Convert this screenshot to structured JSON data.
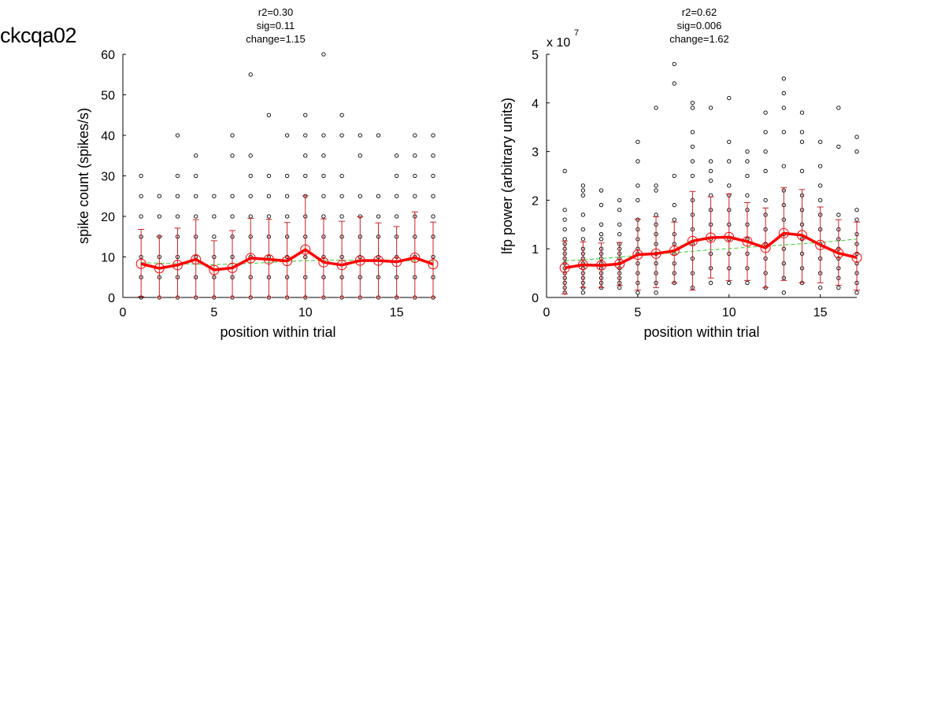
{
  "figure": {
    "title": "ckcqa02"
  },
  "chart_data": [
    {
      "type": "scatter",
      "stats": [
        "r2=0.30",
        "sig=0.11",
        "change=1.15"
      ],
      "xlabel": "position within trial",
      "ylabel": "spike count (spikes/s)",
      "xlim": [
        0,
        17
      ],
      "ylim": [
        0,
        60
      ],
      "xticks": [
        "0",
        "5",
        "10",
        "15"
      ],
      "yticks": [
        "0",
        "10",
        "20",
        "30",
        "40",
        "50",
        "60"
      ],
      "exponent_base": "",
      "exponent_power": "",
      "grid": false,
      "raw_points": [
        {
          "x": 1,
          "y": [
            0,
            5,
            10,
            15,
            20,
            25,
            30
          ]
        },
        {
          "x": 2,
          "y": [
            0,
            5,
            10,
            15,
            20,
            25
          ]
        },
        {
          "x": 3,
          "y": [
            0,
            5,
            10,
            15,
            20,
            25,
            30,
            40
          ]
        },
        {
          "x": 4,
          "y": [
            0,
            5,
            10,
            15,
            20,
            25,
            30,
            35
          ]
        },
        {
          "x": 5,
          "y": [
            0,
            5,
            10,
            15,
            20,
            25
          ]
        },
        {
          "x": 6,
          "y": [
            0,
            5,
            10,
            15,
            20,
            25,
            35,
            40
          ]
        },
        {
          "x": 7,
          "y": [
            0,
            5,
            10,
            15,
            20,
            25,
            30,
            35,
            55
          ]
        },
        {
          "x": 8,
          "y": [
            0,
            5,
            10,
            15,
            20,
            25,
            30,
            45
          ]
        },
        {
          "x": 9,
          "y": [
            0,
            5,
            10,
            15,
            20,
            25,
            30,
            40
          ]
        },
        {
          "x": 10,
          "y": [
            0,
            5,
            10,
            15,
            20,
            25,
            30,
            35,
            40,
            45
          ]
        },
        {
          "x": 11,
          "y": [
            0,
            5,
            10,
            15,
            20,
            25,
            30,
            35,
            40,
            60
          ]
        },
        {
          "x": 12,
          "y": [
            0,
            5,
            10,
            15,
            20,
            25,
            30,
            40,
            45
          ]
        },
        {
          "x": 13,
          "y": [
            0,
            5,
            10,
            15,
            20,
            25,
            35,
            40
          ]
        },
        {
          "x": 14,
          "y": [
            0,
            5,
            10,
            15,
            20,
            25,
            40
          ]
        },
        {
          "x": 15,
          "y": [
            0,
            5,
            10,
            15,
            20,
            25,
            30,
            35
          ]
        },
        {
          "x": 16,
          "y": [
            0,
            5,
            10,
            15,
            20,
            25,
            30,
            35,
            40
          ]
        },
        {
          "x": 17,
          "y": [
            0,
            5,
            10,
            15,
            20,
            25,
            30,
            35,
            40
          ]
        }
      ],
      "mean": {
        "x": [
          1,
          2,
          3,
          4,
          5,
          6,
          7,
          8,
          9,
          10,
          11,
          12,
          13,
          14,
          15,
          16,
          17
        ],
        "y": [
          8.3,
          7.2,
          8.0,
          9.4,
          6.8,
          7.3,
          9.7,
          9.4,
          9.0,
          11.8,
          8.7,
          8.0,
          9.1,
          9.1,
          8.8,
          9.8,
          8.2
        ]
      },
      "error_bars": {
        "low": [
          0.2,
          0,
          0,
          0,
          0,
          0,
          0,
          0,
          0,
          0,
          0,
          0,
          0,
          0,
          0,
          0,
          0
        ],
        "high": [
          16.8,
          15.1,
          17.1,
          19.2,
          14.0,
          16.5,
          19.5,
          19.3,
          18.5,
          25.1,
          19.4,
          18.8,
          19.9,
          18.4,
          17.5,
          21.1,
          18.6
        ]
      },
      "trend": {
        "x": [
          1,
          3,
          5,
          7,
          9,
          11,
          13,
          15,
          17
        ],
        "y": [
          8.6,
          8.3,
          8.1,
          8.4,
          8.9,
          9.2,
          9.2,
          9.1,
          9.0
        ]
      }
    },
    {
      "type": "scatter",
      "stats": [
        "r2=0.62",
        "sig=0.006",
        "change=1.62"
      ],
      "xlabel": "position within trial",
      "ylabel": "lfp power (arbitrary units)",
      "xlim": [
        0,
        17
      ],
      "ylim": [
        0,
        5
      ],
      "xticks": [
        "0",
        "5",
        "10",
        "15"
      ],
      "yticks": [
        "0",
        "1",
        "2",
        "3",
        "4",
        "5"
      ],
      "exponent_base": "x 10",
      "exponent_power": "7",
      "grid": false,
      "raw_points": [
        {
          "x": 1,
          "y": [
            0.1,
            0.2,
            0.3,
            0.4,
            0.5,
            0.6,
            0.7,
            0.8,
            0.9,
            1.0,
            1.1,
            1.2,
            1.4,
            1.6,
            1.8,
            2.6
          ]
        },
        {
          "x": 2,
          "y": [
            0.1,
            0.2,
            0.3,
            0.4,
            0.5,
            0.6,
            0.7,
            0.8,
            0.9,
            1.0,
            1.2,
            1.4,
            1.7,
            2.1,
            2.2,
            2.3
          ]
        },
        {
          "x": 3,
          "y": [
            0.2,
            0.3,
            0.4,
            0.5,
            0.6,
            0.7,
            0.8,
            0.9,
            1.0,
            1.2,
            1.3,
            1.5,
            1.9,
            2.2
          ]
        },
        {
          "x": 4,
          "y": [
            0.2,
            0.3,
            0.4,
            0.5,
            0.6,
            0.7,
            0.8,
            0.9,
            1.0,
            1.1,
            1.3,
            1.5,
            1.8,
            2.0
          ]
        },
        {
          "x": 5,
          "y": [
            0.1,
            0.3,
            0.5,
            0.7,
            0.9,
            1.0,
            1.2,
            1.4,
            1.6,
            2.0,
            2.3,
            2.8,
            3.2
          ]
        },
        {
          "x": 6,
          "y": [
            0.1,
            0.3,
            0.5,
            0.7,
            0.9,
            1.1,
            1.3,
            1.5,
            1.7,
            2.2,
            2.3,
            3.9
          ]
        },
        {
          "x": 7,
          "y": [
            0.3,
            0.5,
            0.7,
            0.9,
            1.1,
            1.3,
            1.6,
            1.9,
            2.5,
            4.4,
            4.8
          ]
        },
        {
          "x": 8,
          "y": [
            0.2,
            0.5,
            0.8,
            1.1,
            1.4,
            1.7,
            2.0,
            2.5,
            2.8,
            3.1,
            3.4,
            3.9,
            4.0
          ]
        },
        {
          "x": 9,
          "y": [
            0.3,
            0.6,
            0.9,
            1.2,
            1.5,
            1.8,
            2.1,
            2.4,
            2.6,
            2.8,
            3.9
          ]
        },
        {
          "x": 10,
          "y": [
            0.3,
            0.6,
            0.9,
            1.2,
            1.5,
            1.8,
            2.1,
            2.3,
            2.8,
            3.2,
            4.1
          ]
        },
        {
          "x": 11,
          "y": [
            0.3,
            0.6,
            0.9,
            1.2,
            1.5,
            1.8,
            2.1,
            2.5,
            2.8,
            3.0
          ]
        },
        {
          "x": 12,
          "y": [
            0.2,
            0.5,
            0.8,
            1.1,
            1.4,
            1.7,
            2.0,
            2.6,
            3.0,
            3.4,
            3.8
          ]
        },
        {
          "x": 13,
          "y": [
            0.1,
            0.4,
            0.7,
            1.0,
            1.3,
            1.6,
            1.9,
            2.2,
            2.7,
            3.4,
            3.9,
            4.2,
            4.5
          ]
        },
        {
          "x": 14,
          "y": [
            0.3,
            0.6,
            0.9,
            1.2,
            1.5,
            1.8,
            2.1,
            2.6,
            3.2,
            3.4,
            3.8
          ]
        },
        {
          "x": 15,
          "y": [
            0.2,
            0.5,
            0.8,
            1.1,
            1.4,
            1.7,
            2.0,
            2.3,
            2.7,
            3.2
          ]
        },
        {
          "x": 16,
          "y": [
            0.2,
            0.4,
            0.6,
            0.8,
            1.0,
            1.2,
            1.4,
            1.7,
            3.1,
            3.9
          ]
        },
        {
          "x": 17,
          "y": [
            0.1,
            0.3,
            0.5,
            0.7,
            0.9,
            1.1,
            1.3,
            1.6,
            1.8,
            3.0,
            3.3
          ]
        }
      ],
      "mean": {
        "x": [
          1,
          2,
          3,
          4,
          5,
          6,
          7,
          8,
          9,
          10,
          11,
          12,
          13,
          14,
          15,
          16,
          17
        ],
        "y": [
          0.61,
          0.67,
          0.66,
          0.69,
          0.88,
          0.9,
          0.96,
          1.16,
          1.23,
          1.24,
          1.15,
          1.02,
          1.32,
          1.28,
          1.08,
          0.91,
          0.82
        ]
      },
      "error_bars": {
        "low": [
          0.07,
          0.2,
          0.2,
          0.25,
          0.15,
          0.2,
          0.3,
          0.15,
          0.4,
          0.35,
          0.35,
          0.2,
          0.35,
          0.3,
          0.3,
          0.25,
          0.15
        ],
        "high": [
          1.16,
          1.14,
          1.12,
          1.13,
          1.61,
          1.66,
          1.55,
          2.18,
          2.07,
          2.13,
          1.95,
          1.84,
          2.26,
          2.22,
          1.86,
          1.6,
          1.55
        ]
      },
      "trend": {
        "x": [
          1,
          3,
          5,
          7,
          9,
          11,
          13,
          15,
          17
        ],
        "y": [
          0.75,
          0.8,
          0.86,
          0.92,
          0.98,
          1.03,
          1.08,
          1.13,
          1.2
        ]
      }
    }
  ],
  "colors": {
    "axis": "#000000",
    "raw_point": "#000000",
    "mean_line": "#ff0000",
    "mean_marker": "#ff0000",
    "error_bar": "#cc2222",
    "trend_line": "#33cc33"
  }
}
